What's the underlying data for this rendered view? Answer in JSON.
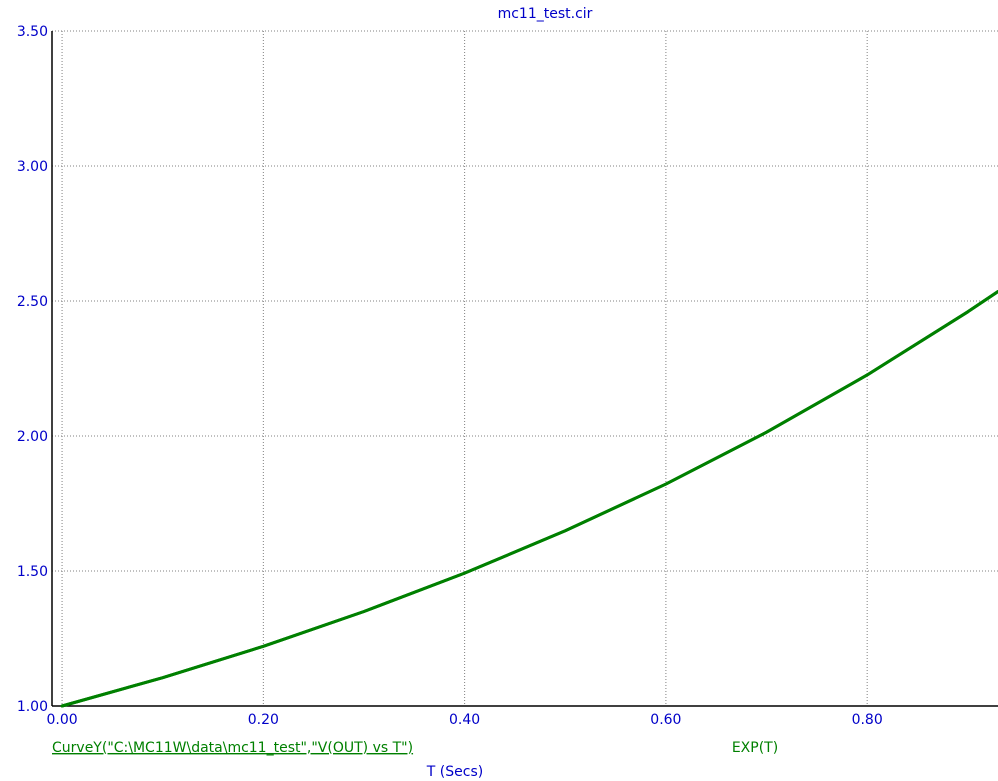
{
  "chart_data": {
    "type": "line",
    "title": "mc11_test.cir",
    "xlabel": "T (Secs)",
    "ylabel": "",
    "xlim": [
      -0.01,
      0.93
    ],
    "ylim": [
      1.0,
      3.5
    ],
    "x_ticks": [
      "0.00",
      "0.20",
      "0.40",
      "0.60",
      "0.80"
    ],
    "y_ticks": [
      "1.00",
      "1.50",
      "2.00",
      "2.50",
      "3.00",
      "3.50"
    ],
    "grid": true,
    "series": [
      {
        "name": "CurveY(\"C:\\MC11W\\data\\mc11_test\",\"V(OUT) vs T\")",
        "color": "#008000",
        "x": [
          0.0,
          0.1,
          0.2,
          0.3,
          0.4,
          0.5,
          0.6,
          0.7,
          0.8,
          0.9,
          0.93
        ],
        "y": [
          1.0,
          1.105,
          1.221,
          1.35,
          1.492,
          1.649,
          1.822,
          2.014,
          2.226,
          2.46,
          2.535
        ]
      },
      {
        "name": "EXP(T)",
        "color": "#008000",
        "x": [
          0.0,
          0.1,
          0.2,
          0.3,
          0.4,
          0.5,
          0.6,
          0.7,
          0.8,
          0.9,
          0.93
        ],
        "y": [
          1.0,
          1.105,
          1.221,
          1.35,
          1.492,
          1.649,
          1.822,
          2.014,
          2.226,
          2.46,
          2.535
        ]
      }
    ]
  },
  "colors": {
    "axis": "#000000",
    "grid": "#808080",
    "text": "#0000c8",
    "curve": "#008000"
  }
}
